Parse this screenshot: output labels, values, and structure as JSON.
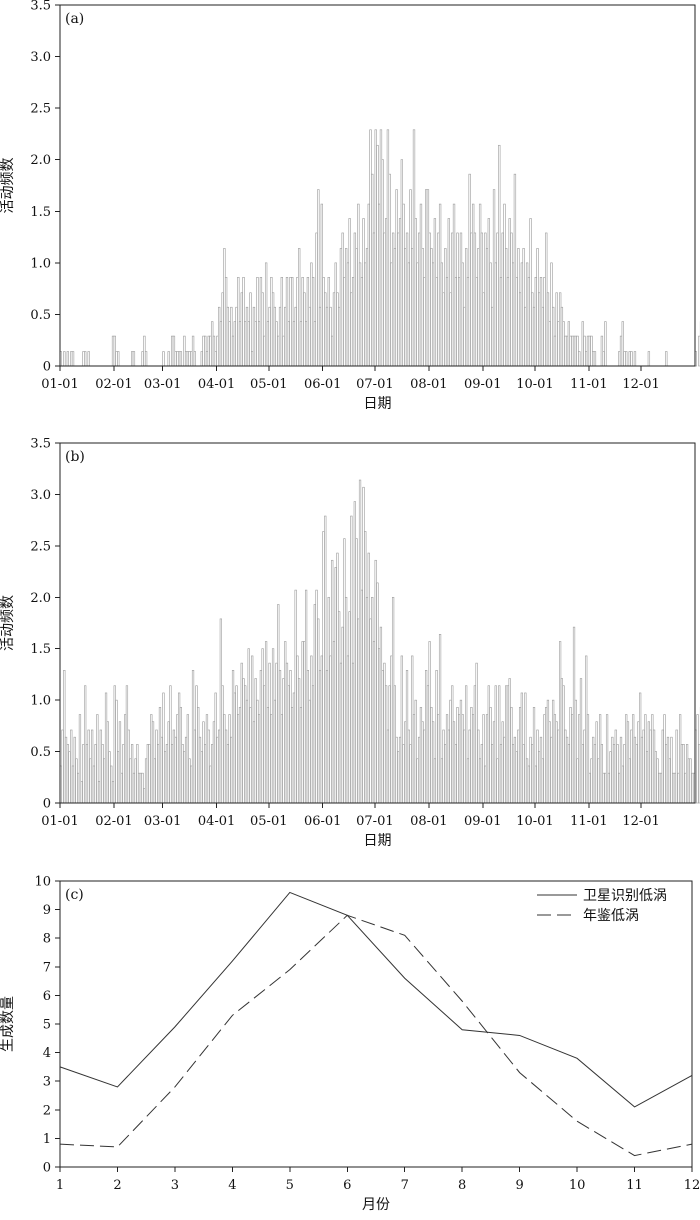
{
  "chart_data": [
    {
      "type": "bar",
      "panel_label": "(a)",
      "xlabel": "日期",
      "ylabel": "活动频数",
      "xticks": [
        "01-01",
        "02-01",
        "03-01",
        "04-01",
        "05-01",
        "06-01",
        "07-01",
        "08-01",
        "09-01",
        "10-01",
        "11-01",
        "12-01"
      ],
      "yticks": [
        "0",
        "0.5",
        "1.0",
        "1.5",
        "2.0",
        "2.5",
        "3.0",
        "3.5"
      ],
      "ylim": [
        0,
        3.5
      ],
      "x_domain": [
        0,
        365
      ],
      "values": [
        0.14,
        0,
        0.14,
        0,
        0.14,
        0,
        0.14,
        0.14,
        0,
        0,
        0,
        0,
        0,
        0.14,
        0.14,
        0,
        0.14,
        0,
        0,
        0,
        0,
        0,
        0,
        0,
        0,
        0,
        0,
        0,
        0,
        0,
        0.29,
        0.29,
        0.14,
        0.14,
        0,
        0,
        0,
        0,
        0,
        0,
        0,
        0.14,
        0.14,
        0,
        0,
        0,
        0,
        0.14,
        0.29,
        0.14,
        0,
        0,
        0,
        0,
        0,
        0,
        0,
        0,
        0,
        0.14,
        0,
        0,
        0.14,
        0,
        0.29,
        0.29,
        0.14,
        0.14,
        0.14,
        0.14,
        0,
        0.29,
        0.14,
        0.14,
        0.14,
        0.14,
        0.29,
        0.14,
        0,
        0,
        0,
        0.14,
        0.29,
        0.29,
        0.14,
        0.29,
        0.29,
        0.43,
        0.29,
        0.14,
        0.29,
        0.57,
        0.43,
        0.71,
        1.14,
        0.86,
        0.57,
        0.43,
        0.57,
        0.29,
        0.43,
        0.57,
        0.86,
        0.43,
        0.71,
        0.86,
        0.43,
        0.57,
        0.43,
        0.71,
        0.14,
        0.57,
        0.43,
        0.86,
        0.43,
        0.86,
        0.71,
        0.29,
        1.0,
        0.43,
        0.57,
        0.86,
        0.71,
        0.57,
        0.43,
        0.29,
        0.57,
        0.86,
        0.29,
        0.57,
        0.86,
        0.43,
        0.86,
        0.86,
        0.43,
        0.57,
        0.86,
        1.14,
        0.43,
        0.86,
        0.71,
        0.43,
        0.86,
        0.57,
        1.0,
        0.86,
        0.43,
        1.29,
        1.71,
        0.57,
        1.57,
        0.86,
        0.71,
        0.57,
        0.86,
        0.57,
        0.29,
        0.71,
        1.0,
        0.71,
        0.57,
        1.14,
        1.29,
        0.86,
        1.14,
        1.0,
        1.43,
        0.71,
        0.86,
        1.29,
        1.14,
        1.57,
        1.0,
        0.86,
        1.43,
        1.0,
        1.14,
        1.57,
        2.29,
        1.86,
        1.29,
        2.29,
        2.14,
        1.57,
        2.29,
        2.0,
        1.29,
        1.43,
        2.29,
        1.86,
        1.0,
        1.29,
        1.14,
        1.71,
        1.29,
        1.43,
        2.0,
        1.57,
        1.14,
        1.29,
        1.0,
        1.71,
        1.14,
        2.29,
        1.43,
        1.0,
        1.29,
        1.57,
        1.14,
        0.86,
        1.71,
        1.71,
        1.29,
        1.14,
        1.0,
        1.43,
        0.86,
        1.29,
        1.57,
        1.0,
        0.71,
        1.14,
        0.86,
        1.43,
        0.71,
        1.29,
        1.57,
        0.86,
        1.29,
        0.86,
        1.29,
        1.0,
        0.57,
        1.14,
        0.86,
        1.86,
        1.29,
        1.57,
        1.29,
        0.86,
        1.14,
        1.57,
        1.29,
        0.71,
        1.29,
        1.14,
        1.43,
        1.0,
        0.57,
        1.71,
        1.0,
        1.29,
        2.14,
        0.86,
        1.29,
        1.57,
        1.14,
        0.86,
        1.43,
        1.29,
        1.0,
        1.86,
        0.86,
        1.14,
        0.71,
        1.0,
        1.14,
        0.57,
        1.0,
        0.86,
        1.43,
        0.71,
        0.57,
        0.86,
        1.14,
        0.71,
        0.86,
        0.57,
        0.86,
        1.29,
        0.71,
        0.43,
        1.0,
        0.57,
        0.29,
        0.71,
        0.43,
        0.71,
        0.57,
        0.43,
        0.29,
        0.29,
        0.43,
        0.29,
        0.29,
        0.29,
        0.29,
        0.29,
        0.14,
        0,
        0.43,
        0.29,
        0.14,
        0.29,
        0.29,
        0.29,
        0.14,
        0.14,
        0,
        0,
        0,
        0.29,
        0.14,
        0.43,
        0,
        0,
        0,
        0,
        0,
        0,
        0,
        0.14,
        0.29,
        0.43,
        0.14,
        0.14,
        0,
        0.14,
        0.14,
        0,
        0.14,
        0,
        0,
        0,
        0,
        0,
        0,
        0,
        0.14,
        0,
        0,
        0,
        0,
        0,
        0,
        0,
        0,
        0,
        0.14,
        0,
        0,
        0,
        0,
        0,
        0,
        0,
        0,
        0,
        0,
        0,
        0,
        0,
        0,
        0,
        0,
        0.14,
        0,
        0.29,
        0.43,
        0.29,
        0,
        0.14,
        0.14
      ]
    },
    {
      "type": "bar",
      "panel_label": "(b)",
      "xlabel": "日期",
      "ylabel": "活动频数",
      "xticks": [
        "01-01",
        "02-01",
        "03-01",
        "04-01",
        "05-01",
        "06-01",
        "07-01",
        "08-01",
        "09-01",
        "10-01",
        "11-01",
        "12-01"
      ],
      "yticks": [
        "0",
        "0.5",
        "1.0",
        "1.5",
        "2.0",
        "2.5",
        "3.0",
        "3.5"
      ],
      "ylim": [
        0,
        3.5
      ],
      "x_domain": [
        0,
        365
      ],
      "values": [
        0.36,
        0.71,
        1.29,
        0.64,
        0.57,
        0.5,
        0.71,
        0.36,
        0.64,
        0.43,
        0.29,
        0.86,
        0.21,
        0.57,
        1.14,
        0.57,
        0.71,
        0.43,
        0.71,
        0.36,
        0.57,
        0.86,
        0.21,
        0.71,
        0.57,
        0.43,
        1.07,
        0.79,
        0.5,
        0.36,
        0.21,
        1.14,
        1.0,
        0.5,
        0.79,
        0.29,
        0.57,
        0.86,
        1.14,
        0.71,
        0.43,
        0.57,
        0.29,
        0.43,
        0.57,
        0.29,
        0.29,
        0.29,
        0.14,
        0.43,
        0.57,
        0.57,
        0.86,
        0.79,
        0.43,
        0.71,
        0.57,
        0.93,
        0.64,
        1.07,
        0.5,
        0.57,
        0.79,
        1.14,
        0.57,
        0.71,
        0.64,
        0.86,
        1.07,
        0.93,
        0.57,
        0.5,
        0.64,
        0.86,
        0.43,
        0.36,
        1.29,
        0.71,
        1.14,
        0.93,
        0.64,
        0.5,
        0.79,
        0.57,
        0.86,
        0.71,
        0.36,
        0.57,
        0.79,
        1.07,
        0.64,
        0.71,
        1.79,
        1.14,
        0.86,
        0.71,
        0.57,
        0.86,
        0.64,
        1.29,
        1.07,
        1.14,
        0.86,
        0.93,
        1.36,
        1.21,
        1.14,
        1.0,
        1.5,
        0.93,
        1.43,
        0.79,
        1.21,
        1.0,
        0.86,
        1.29,
        1.5,
        1.14,
        1.57,
        0.93,
        1.36,
        0.86,
        1.5,
        1.0,
        1.36,
        1.93,
        1.29,
        0.86,
        1.21,
        1.57,
        1.36,
        1.14,
        1.29,
        0.93,
        1.07,
        2.07,
        1.43,
        1.21,
        0.93,
        1.57,
        1.57,
        2.07,
        1.29,
        1.0,
        1.43,
        1.14,
        1.93,
        2.07,
        1.79,
        1.29,
        1.43,
        2.64,
        2.79,
        1.29,
        2.0,
        1.43,
        2.36,
        1.57,
        2.29,
        2.43,
        1.86,
        1.36,
        1.71,
        2.57,
        2.0,
        1.43,
        1.86,
        2.79,
        1.36,
        2.93,
        2.57,
        1.79,
        3.14,
        2.07,
        3.07,
        2.64,
        2.0,
        2.43,
        1.79,
        2.0,
        1.57,
        2.36,
        2.14,
        1.5,
        1.71,
        1.29,
        1.36,
        1.14,
        0.71,
        1.14,
        1.43,
        2.0,
        1.14,
        0.64,
        0.5,
        0.64,
        1.43,
        0.57,
        0.79,
        1.29,
        0.71,
        0.57,
        1.43,
        0.86,
        1.0,
        0.43,
        0.64,
        0.93,
        0.79,
        0.71,
        1.29,
        1.14,
        1.57,
        0.93,
        0.79,
        0.43,
        1.29,
        0.86,
        1.64,
        0.43,
        0.71,
        0.57,
        0.86,
        0.71,
        1.0,
        1.14,
        0.79,
        0.57,
        0.93,
        0.86,
        1.0,
        0.86,
        0.71,
        1.14,
        0.43,
        0.71,
        0.93,
        0.86,
        1.14,
        1.36,
        0.71,
        0.43,
        0.57,
        0.86,
        0.36,
        0.86,
        1.14,
        0.93,
        0.57,
        0.79,
        1.14,
        0.43,
        1.14,
        0.57,
        0.79,
        0.64,
        1.14,
        1.14,
        1.21,
        0.93,
        0.57,
        0.64,
        0.5,
        0.71,
        0.93,
        1.07,
        0.57,
        1.07,
        0.43,
        0.36,
        0.64,
        0.57,
        0.93,
        0.36,
        0.71,
        0.5,
        0.64,
        0.43,
        0.86,
        0.93,
        1.0,
        0.79,
        0.64,
        1.0,
        0.86,
        0.79,
        0.71,
        1.57,
        1.21,
        1.14,
        0.71,
        0.64,
        0.57,
        0.93,
        0.86,
        1.71,
        1.0,
        0.43,
        0.86,
        1.21,
        0.57,
        0.71,
        1.43,
        0.86,
        0.29,
        0.43,
        0.64,
        0.57,
        0.79,
        0.43,
        0.86,
        0.57,
        0.29,
        0.29,
        0.86,
        0.29,
        0.5,
        0.64,
        0.57,
        0.71,
        0.57,
        0.29,
        0.64,
        0.36,
        0.57,
        0.86,
        0.79,
        0.43,
        0.71,
        0.86,
        0.64,
        0.57,
        0.79,
        1.07,
        0.64,
        0.71,
        0.86,
        0.5,
        0.79,
        0.71,
        0.86,
        0.71,
        0.5,
        0.43,
        0.29,
        0.29,
        0.71,
        0.86,
        0.57,
        0.64,
        0.43,
        0.64,
        0.29,
        0.29,
        0.71,
        0.29,
        0.86,
        0.57,
        0.57,
        0.29,
        0.57,
        0.43,
        0.43,
        0.29,
        0.29,
        0.71,
        0.86,
        0.57,
        0.93,
        0.71,
        0.86,
        0.64,
        0.71,
        0.57,
        0.71,
        0.86,
        0.5,
        0.43,
        0.64,
        0.57,
        0.86,
        0.5,
        0.57,
        0.64,
        0.43,
        0.36,
        0.5,
        1.07,
        1.07,
        1.07
      ]
    },
    {
      "type": "line",
      "panel_label": "(c)",
      "xlabel": "月份",
      "ylabel": "生成数量",
      "x": [
        1,
        2,
        3,
        4,
        5,
        6,
        7,
        8,
        9,
        10,
        11,
        12
      ],
      "xlim": [
        1,
        12
      ],
      "ylim": [
        0,
        10
      ],
      "yticks": [
        "0",
        "1",
        "2",
        "3",
        "4",
        "5",
        "6",
        "7",
        "8",
        "9",
        "10"
      ],
      "legend_position": "top-right",
      "series": [
        {
          "name": "卫星识别低涡",
          "style": "solid",
          "values": [
            3.5,
            2.8,
            4.9,
            7.2,
            9.6,
            8.8,
            6.6,
            4.8,
            4.6,
            3.8,
            2.1,
            3.2
          ]
        },
        {
          "name": "年鉴低涡",
          "style": "dashed",
          "values": [
            0.8,
            0.7,
            2.8,
            5.3,
            6.9,
            8.8,
            8.1,
            5.8,
            3.3,
            1.6,
            0.4,
            0.8
          ]
        }
      ]
    }
  ]
}
